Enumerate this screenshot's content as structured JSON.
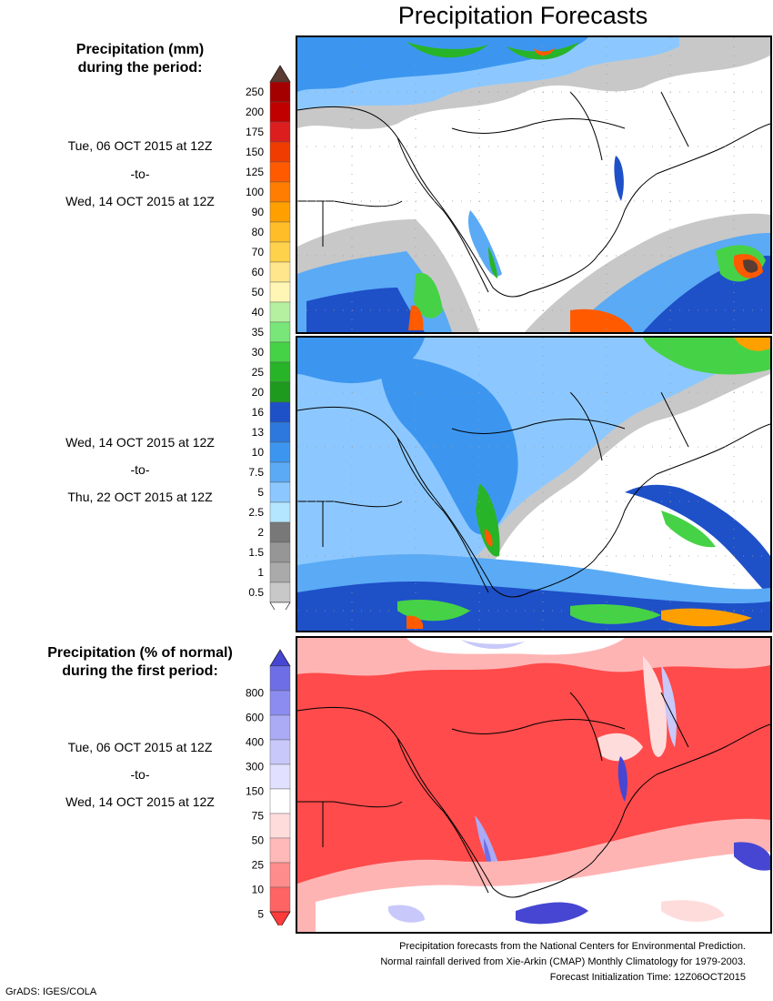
{
  "title": "Precipitation Forecasts",
  "left_panel": {
    "heading1_line1": "Precipitation (mm)",
    "heading1_line2": "during the period:",
    "period1": {
      "start": "Tue, 06 OCT 2015 at 12Z",
      "sep": "-to-",
      "end": "Wed, 14 OCT 2015 at 12Z"
    },
    "period2": {
      "start": "Wed, 14 OCT 2015 at 12Z",
      "sep": "-to-",
      "end": "Thu, 22 OCT 2015 at 12Z"
    },
    "heading2_line1": "Precipitation (% of normal)",
    "heading2_line2": "during the first period:",
    "period3": {
      "start": "Tue, 06 OCT 2015 at 12Z",
      "sep": "-to-",
      "end": "Wed, 14 OCT 2015 at 12Z"
    }
  },
  "precip_scale": {
    "labels": [
      "250",
      "200",
      "175",
      "150",
      "125",
      "100",
      "90",
      "80",
      "70",
      "60",
      "50",
      "40",
      "35",
      "30",
      "25",
      "20",
      "16",
      "13",
      "10",
      "7.5",
      "5",
      "2.5",
      "2",
      "1.5",
      "1",
      "0.5"
    ],
    "colors": [
      "#a50000",
      "#c00000",
      "#dc1e1e",
      "#f03c00",
      "#ff5a00",
      "#ff7d00",
      "#ffa000",
      "#ffbe28",
      "#ffd24b",
      "#ffe68c",
      "#fff5b4",
      "#b4f0a0",
      "#78e678",
      "#46d246",
      "#28b428",
      "#1e9b1e",
      "#1e50c8",
      "#2d78dc",
      "#3c96f0",
      "#5aaaf5",
      "#8cc8ff",
      "#b4e6ff",
      "#787878",
      "#969696",
      "#aaaaaa",
      "#c8c8c8"
    ],
    "top_color": "#5a3c32"
  },
  "pct_scale": {
    "labels": [
      "800",
      "600",
      "400",
      "300",
      "150",
      "75",
      "50",
      "25",
      "10",
      "5"
    ],
    "colors": [
      "#6e6ee6",
      "#8c8cf0",
      "#aaaaf5",
      "#c8c8fa",
      "#e1e1ff",
      "#ffffff",
      "#ffdcdc",
      "#ffb9b9",
      "#ff8c8c",
      "#ff6464"
    ],
    "top_color": "#4646d2",
    "bottom_color": "#ff3c3c"
  },
  "footnotes": {
    "line1": "Precipitation forecasts from the National Centers for Environmental Prediction.",
    "line2": "Normal rainfall derived from Xie-Arkin (CMAP) Monthly Climatology for 1979-2003.",
    "line3": "Forecast Initialization Time: 12Z06OCT2015"
  },
  "credit": "GrADS: IGES/COLA"
}
